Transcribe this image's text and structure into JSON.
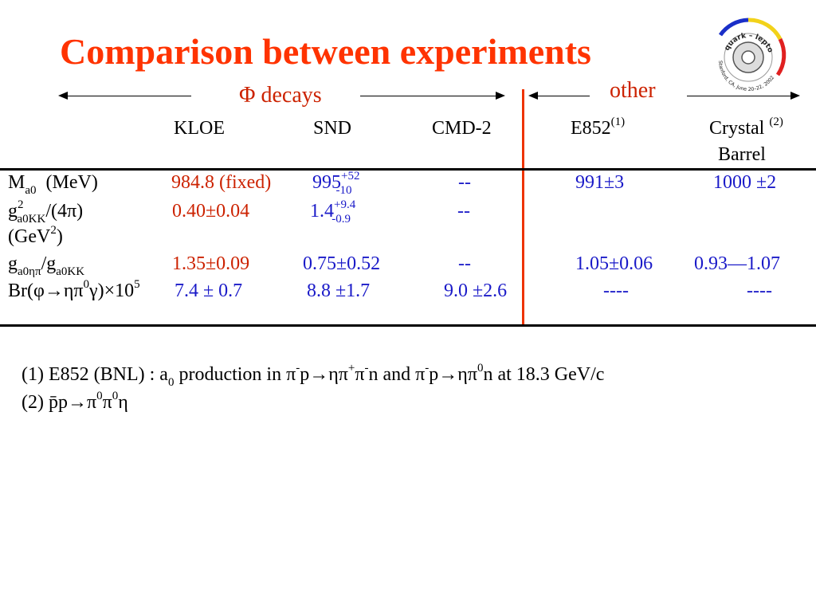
{
  "title": "Comparison between experiments",
  "section_phi": "Φ decays",
  "section_other": "other",
  "logo": {
    "text": "quark – lepton",
    "subtext": "Stanford, CA, June 20–22, 2002"
  },
  "columns": {
    "kloe": "KLOE",
    "snd": "SND",
    "cmd2": "CMD-2",
    "e852": "E852",
    "e852_ref": "(1)",
    "crystal": "Crystal",
    "crystal_ref": "(2)",
    "crystal_line2": "Barrel"
  },
  "rows": {
    "mass": {
      "label_main": "M",
      "label_sub": "a0",
      "label_unit": "(MeV)",
      "kloe": "984.8 (fixed)",
      "snd_base": "995",
      "snd_up": "+52",
      "snd_down": "-10",
      "cmd2": "--",
      "e852": "991±3",
      "crystal": "1000 ±2"
    },
    "coupling": {
      "label_g": "g",
      "label_sup": "2",
      "label_sub": "a0KK",
      "label_rest": "/(4π)",
      "label_line2_pre": "(GeV",
      "label_line2_sup": "2",
      "label_line2_post": ")",
      "kloe": "0.40±0.04",
      "snd_base": "1.4",
      "snd_up": "+9.4",
      "snd_down": "-0.9",
      "cmd2": "--"
    },
    "ratio": {
      "label_g1": "g",
      "label_sub1": "a0ηπ",
      "label_slash": "/g",
      "label_sub2": "a0KK",
      "kloe": "1.35±0.09",
      "snd": "0.75±0.52",
      "cmd2": "--",
      "e852": "1.05±0.06",
      "crystal": "0.93—1.07"
    },
    "br": {
      "label_pre": "Br(φ→ηπ",
      "label_sup0": "0",
      "label_mid": "γ)×10",
      "label_sup5": "5",
      "kloe": "7.4 ± 0.7",
      "snd": "8.8 ±1.7",
      "cmd2": "9.0 ±2.6",
      "e852": "----",
      "crystal": "----"
    }
  },
  "notes": {
    "n1_a": "(1) E852 (BNL)  : a",
    "n1_sub0": "0",
    "n1_b": " production in π",
    "n1_sup_minus1": "-",
    "n1_c": "p→ηπ",
    "n1_sup_plus": "+",
    "n1_d": "π",
    "n1_sup_minus2": "-",
    "n1_e": "n and π",
    "n1_sup_minus3": "-",
    "n1_f": "p→ηπ",
    "n1_sup_zero": "0",
    "n1_g": "n  at 18.3 GeV/c",
    "n2_a": "(2) p̄p→π",
    "n2_sup1": "0",
    "n2_b": "π",
    "n2_sup2": "0",
    "n2_c": "η"
  },
  "colors": {
    "title": "#ff3300",
    "kloe": "#cc2200",
    "values": "#1a1ac8",
    "divider": "#ee3300"
  }
}
